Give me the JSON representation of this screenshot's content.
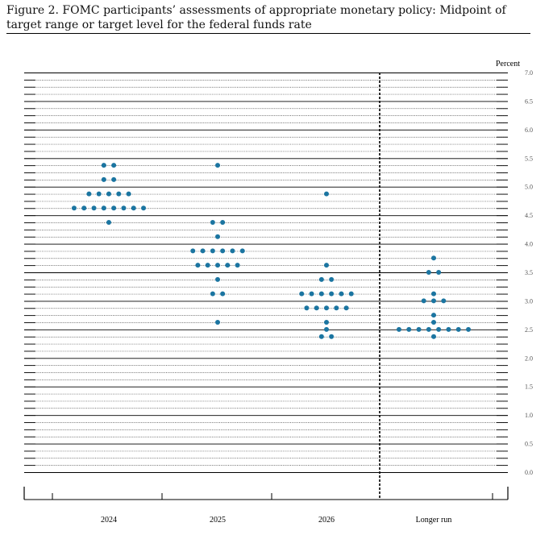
{
  "figure": {
    "title": "Figure 2. FOMC participants’ assessments of appropriate monetary policy: Midpoint of target range or target level for the federal funds rate"
  },
  "chart_data": {
    "type": "scatter",
    "ylabel": "Percent",
    "ylim": [
      0.0,
      7.0
    ],
    "ytick_step": 0.125,
    "ytick_labels": [
      "0.0",
      "0.5",
      "1.0",
      "1.5",
      "2.0",
      "2.5",
      "3.0",
      "3.5",
      "4.0",
      "4.5",
      "5.0",
      "5.5",
      "6.0",
      "6.5",
      "7.0"
    ],
    "categories": [
      "2024",
      "2025",
      "2026",
      "Longer run"
    ],
    "dot_color": "#1b75a1",
    "series": [
      {
        "category": "2024",
        "points": [
          {
            "y": 5.375,
            "count": 2
          },
          {
            "y": 5.125,
            "count": 2
          },
          {
            "y": 4.875,
            "count": 5
          },
          {
            "y": 4.625,
            "count": 8
          },
          {
            "y": 4.375,
            "count": 1
          }
        ]
      },
      {
        "category": "2025",
        "points": [
          {
            "y": 5.375,
            "count": 1
          },
          {
            "y": 4.375,
            "count": 2
          },
          {
            "y": 4.125,
            "count": 1
          },
          {
            "y": 3.875,
            "count": 6
          },
          {
            "y": 3.625,
            "count": 5
          },
          {
            "y": 3.375,
            "count": 1
          },
          {
            "y": 3.125,
            "count": 2
          },
          {
            "y": 2.625,
            "count": 1
          }
        ]
      },
      {
        "category": "2026",
        "points": [
          {
            "y": 4.875,
            "count": 1
          },
          {
            "y": 3.625,
            "count": 1
          },
          {
            "y": 3.375,
            "count": 2
          },
          {
            "y": 3.125,
            "count": 6
          },
          {
            "y": 2.875,
            "count": 5
          },
          {
            "y": 2.625,
            "count": 1
          },
          {
            "y": 2.5,
            "count": 1
          },
          {
            "y": 2.375,
            "count": 2
          }
        ]
      },
      {
        "category": "Longer run",
        "points": [
          {
            "y": 3.75,
            "count": 1
          },
          {
            "y": 3.5,
            "count": 2
          },
          {
            "y": 3.125,
            "count": 1
          },
          {
            "y": 3.0,
            "count": 3
          },
          {
            "y": 2.75,
            "count": 1
          },
          {
            "y": 2.625,
            "count": 1
          },
          {
            "y": 2.5,
            "count": 8
          },
          {
            "y": 2.375,
            "count": 1
          }
        ]
      }
    ]
  }
}
